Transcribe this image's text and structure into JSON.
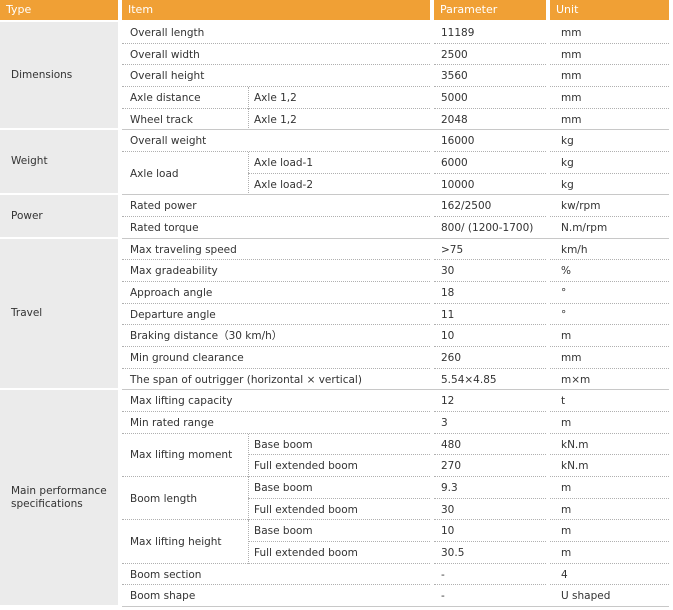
{
  "header": [
    "Type",
    "Item",
    "Parameter",
    "Unit"
  ],
  "groups": [
    {
      "type": "Dimensions",
      "items": [
        {
          "name": "Overall length",
          "parameter": "11189",
          "unit": "mm"
        },
        {
          "name": "Overall width",
          "parameter": "2500",
          "unit": "mm"
        },
        {
          "name": "Overall height",
          "parameter": "3560",
          "unit": "mm"
        },
        {
          "name": "Axle distance",
          "sub": "Axle 1,2",
          "parameter": "5000",
          "unit": "mm"
        },
        {
          "name": "Wheel track",
          "sub": "Axle 1,2",
          "parameter": "2048",
          "unit": "mm"
        }
      ]
    },
    {
      "type": "Weight",
      "items": [
        {
          "name": "Overall weight",
          "parameter": "16000",
          "unit": "kg"
        },
        {
          "name": "Axle load",
          "parts": [
            {
              "sub": "Axle load-1",
              "parameter": "6000",
              "unit": "kg"
            },
            {
              "sub": "Axle load-2",
              "parameter": "10000",
              "unit": "kg"
            }
          ]
        }
      ]
    },
    {
      "type": "Power",
      "items": [
        {
          "name": "Rated power",
          "parameter": "162/2500",
          "unit": "kw/rpm"
        },
        {
          "name": "Rated torque",
          "parameter": "800/ (1200-1700)",
          "unit": "N.m/rpm"
        }
      ]
    },
    {
      "type": "Travel",
      "items": [
        {
          "name": "Max traveling speed",
          "parameter": ">75",
          "unit": "km/h"
        },
        {
          "name": "Max gradeability",
          "parameter": "30",
          "unit": "%"
        },
        {
          "name": "Approach angle",
          "parameter": "18",
          "unit": "°"
        },
        {
          "name": "Departure angle",
          "parameter": "11",
          "unit": "°"
        },
        {
          "name": "Braking distance（30 km/h）",
          "parameter": "10",
          "unit": "m"
        },
        {
          "name": "Min ground clearance",
          "parameter": "260",
          "unit": "mm"
        },
        {
          "name": "The span of outrigger (horizontal × vertical)",
          "parameter": "5.54×4.85",
          "unit": "m×m"
        }
      ]
    },
    {
      "type": "Main performance specifications",
      "items": [
        {
          "name": "Max lifting capacity",
          "parameter": "12",
          "unit": "t"
        },
        {
          "name": "Min rated range",
          "parameter": "3",
          "unit": "m"
        },
        {
          "name": "Max lifting moment",
          "parts": [
            {
              "sub": "Base boom",
              "parameter": "480",
              "unit": "kN.m"
            },
            {
              "sub": "Full extended boom",
              "parameter": "270",
              "unit": "kN.m"
            }
          ]
        },
        {
          "name": "Boom length",
          "parts": [
            {
              "sub": "Base boom",
              "parameter": "9.3",
              "unit": "m"
            },
            {
              "sub": "Full extended boom",
              "parameter": "30",
              "unit": "m"
            }
          ]
        },
        {
          "name": "Max lifting height",
          "parts": [
            {
              "sub": "Base boom",
              "parameter": "10",
              "unit": "m"
            },
            {
              "sub": "Full extended boom",
              "parameter": "30.5",
              "unit": "m"
            }
          ]
        },
        {
          "name": "Boom section",
          "parameter": "-",
          "unit": "4"
        },
        {
          "name": "Boom shape",
          "parameter": "-",
          "unit": "U shaped"
        }
      ]
    }
  ]
}
